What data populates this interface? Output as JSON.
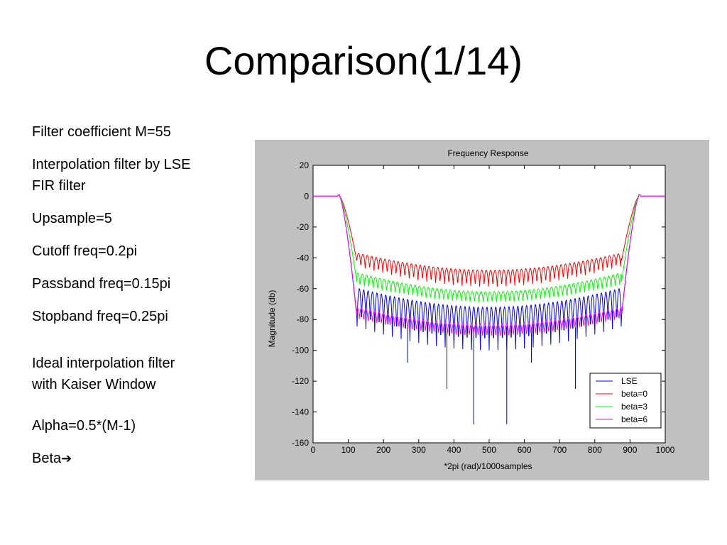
{
  "slide": {
    "title": "Comparison(1/14)",
    "bullets": [
      "Filter coefficient M=55",
      "Interpolation filter by LSE\nFIR filter",
      "Upsample=5",
      "Cutoff freq=0.2pi",
      "Passband freq=0.15pi",
      "Stopband freq=0.25pi",
      "Ideal interpolation filter\nwith Kaiser Window",
      "Alpha=0.5*(M-1)",
      "Beta"
    ],
    "arrow_icon": "right-arrow-icon"
  },
  "chart_data": {
    "type": "line",
    "title": "Frequency Response",
    "xlabel": "*2pi (rad)/1000samples",
    "ylabel": "Magnitude (db)",
    "xlim": [
      0,
      1000
    ],
    "ylim": [
      -160,
      20
    ],
    "xticks": [
      "0",
      "100",
      "200",
      "300",
      "400",
      "500",
      "600",
      "700",
      "800",
      "900",
      "1000"
    ],
    "yticks": [
      "20",
      "0",
      "-20",
      "-40",
      "-60",
      "-80",
      "-100",
      "-120",
      "-140",
      "-160"
    ],
    "grid": false,
    "legend_position": "bottom-right",
    "series": [
      {
        "name": "LSE",
        "color": "#0000ff",
        "passband_db": 0,
        "peak_edge_db": -52,
        "peak_mid_db": -72,
        "null_edge_db": -75,
        "null_mid_db": -100,
        "deep_nulls": [
          [
            268,
            -108
          ],
          [
            380,
            -125
          ],
          [
            456,
            -148
          ],
          [
            550,
            -148
          ],
          [
            620,
            -108
          ],
          [
            745,
            -125
          ]
        ]
      },
      {
        "name": "beta=0",
        "color": "#ff0000",
        "passband_db": 0,
        "peak_edge_db": -30,
        "peak_mid_db": -48,
        "null_edge_db": -38,
        "null_mid_db": -60,
        "deep_nulls": []
      },
      {
        "name": "beta=3",
        "color": "#00ff00",
        "passband_db": 0,
        "peak_edge_db": -42,
        "peak_mid_db": -62,
        "null_edge_db": -52,
        "null_mid_db": -70,
        "deep_nulls": []
      },
      {
        "name": "beta=6",
        "color": "#ff00ff",
        "passband_db": 0,
        "peak_edge_db": -65,
        "peak_mid_db": -83,
        "null_edge_db": -74,
        "null_mid_db": -92,
        "deep_nulls": []
      }
    ]
  }
}
